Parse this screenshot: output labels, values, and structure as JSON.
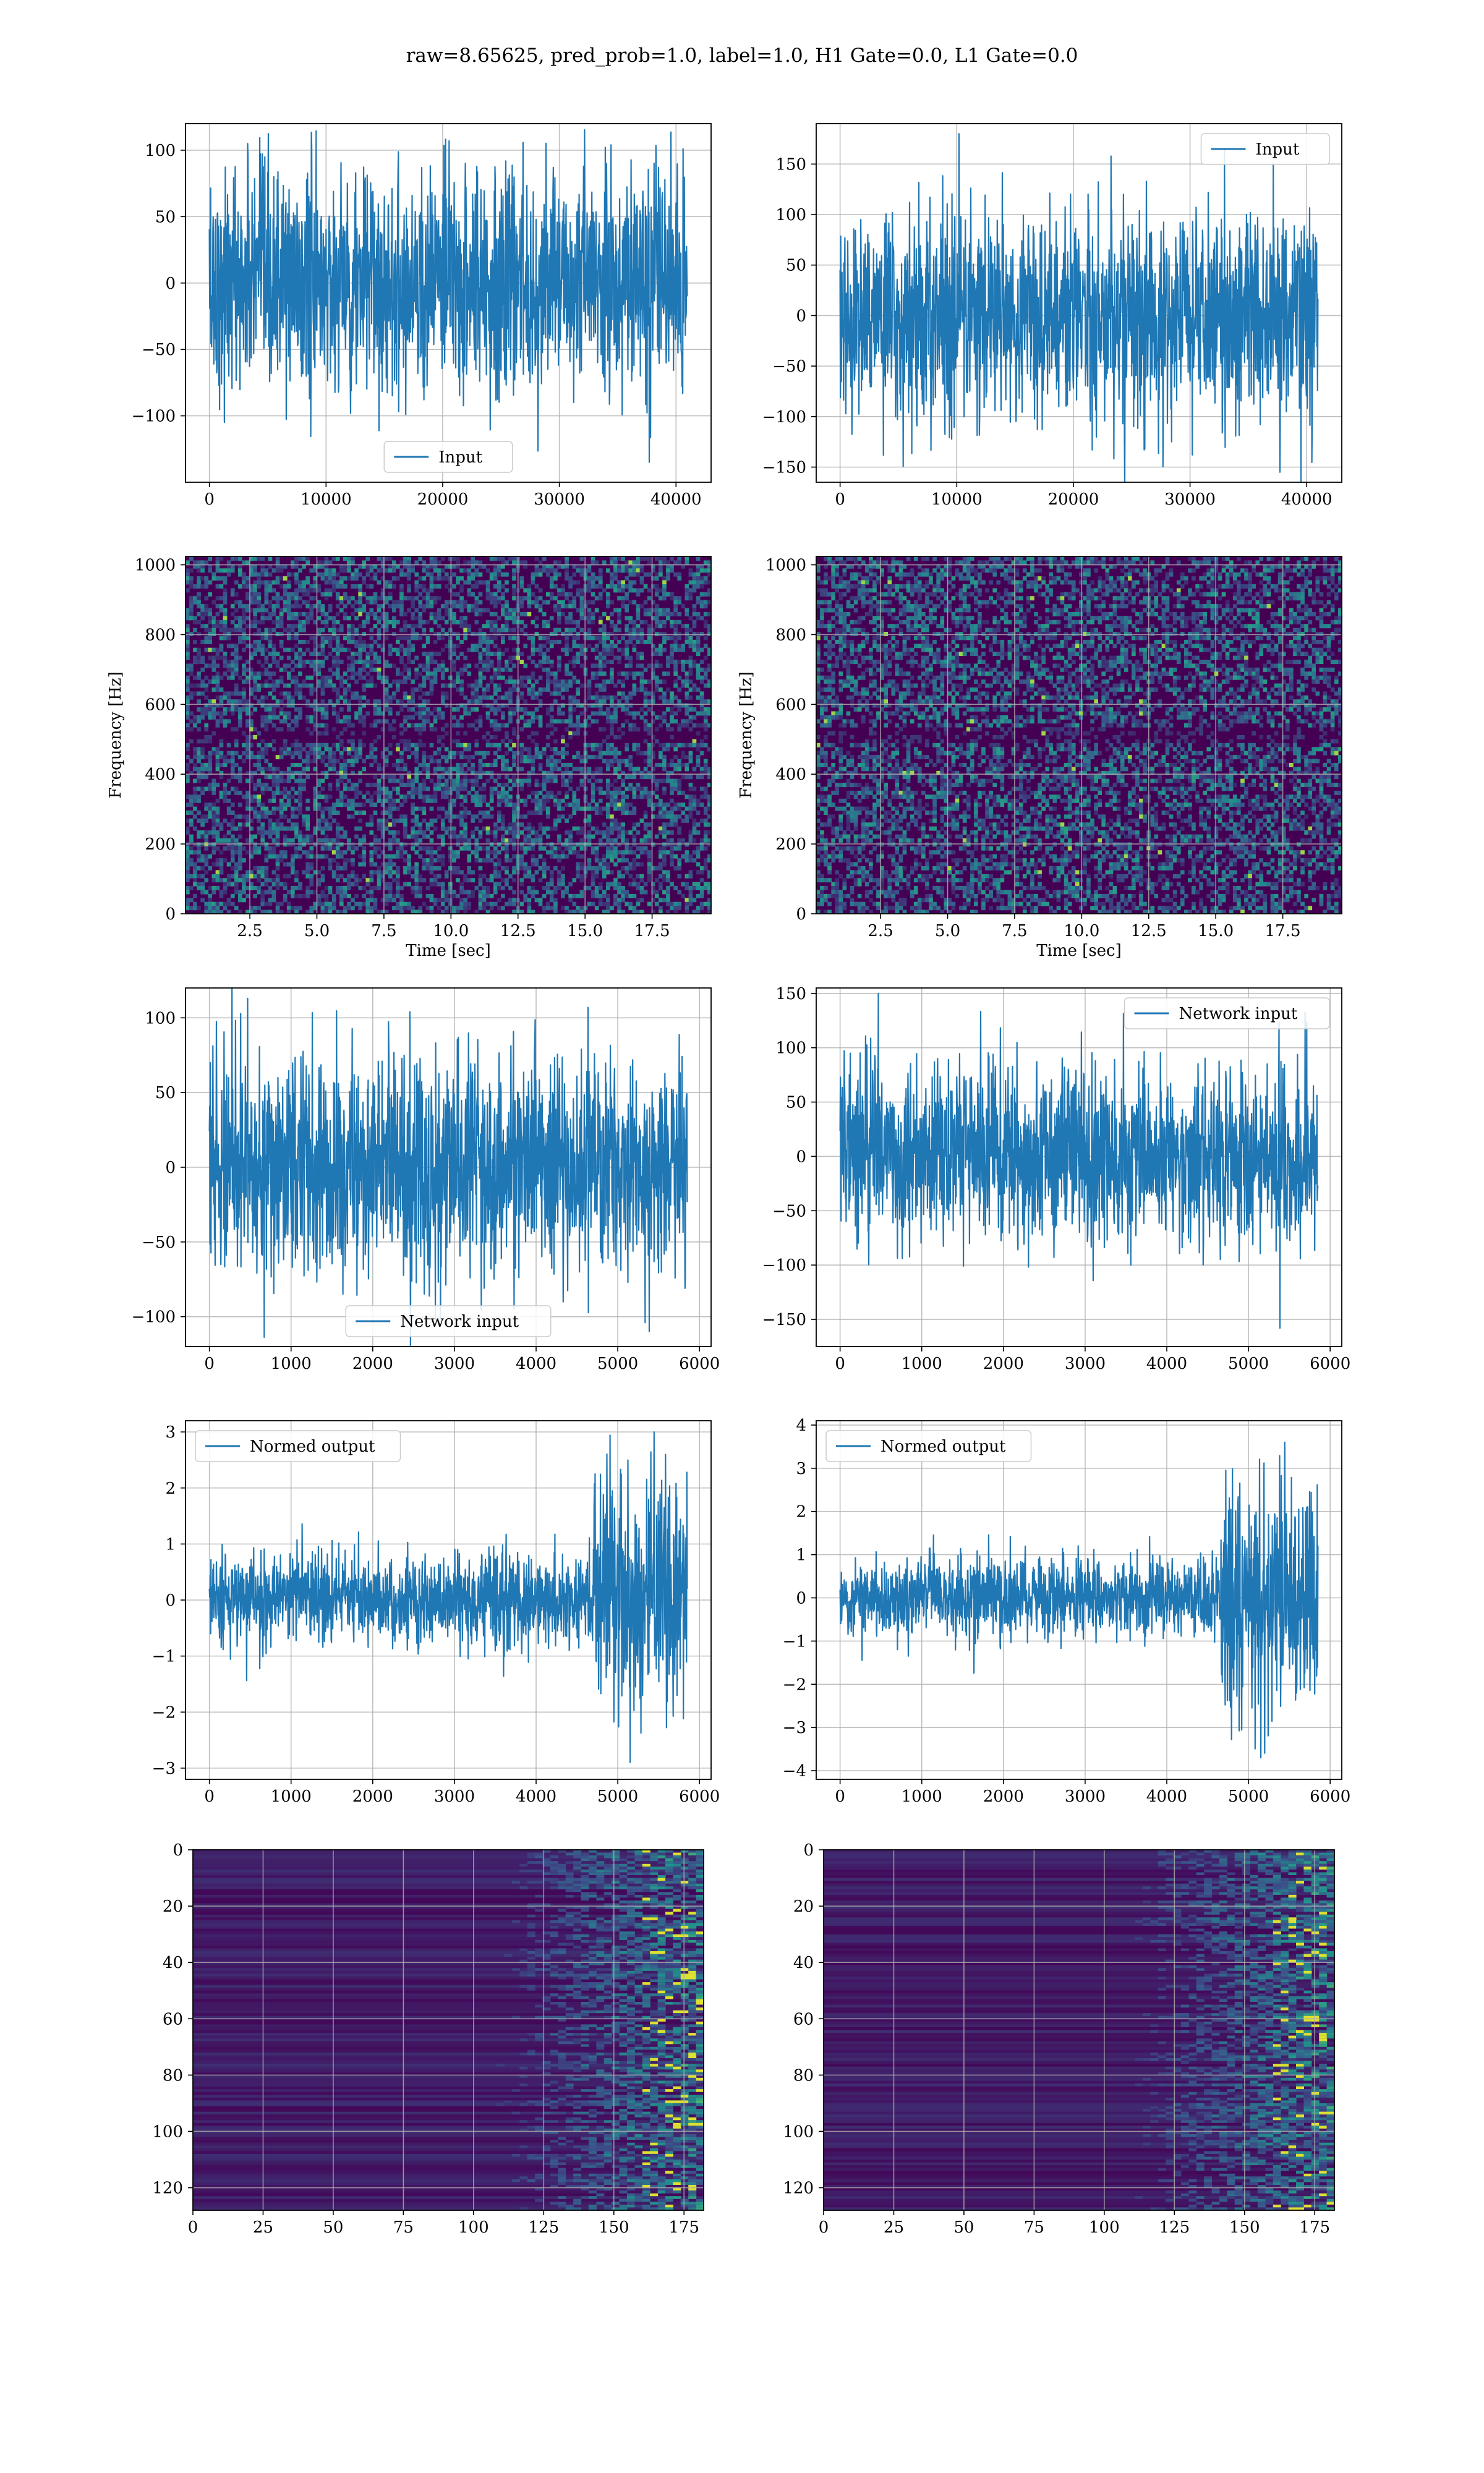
{
  "figure": {
    "suptitle": "raw=8.65625, pred_prob=1.0, label=1.0, H1 Gate=0.0, L1 Gate=0.0",
    "colors": {
      "line": "#1f77b4",
      "grid": "#b0b0b0",
      "spine": "#000000",
      "viridis_low": "#440154",
      "viridis_mid": "#21918c",
      "viridis_high": "#fde725"
    }
  },
  "chart_data": [
    {
      "id": "h1-input",
      "type": "line",
      "series": [
        {
          "name": "Input"
        }
      ],
      "legend": "lower center",
      "x_range": [
        0,
        40960
      ],
      "ylim": [
        -150,
        120
      ],
      "xticks": [
        0,
        10000,
        20000,
        30000,
        40000
      ],
      "yticks": [
        -100,
        -50,
        0,
        50,
        100
      ],
      "envelope": {
        "amp": 42,
        "peak": 105,
        "min": -135
      },
      "grid": true
    },
    {
      "id": "l1-input",
      "type": "line",
      "series": [
        {
          "name": "Input"
        }
      ],
      "legend": "upper right",
      "x_range": [
        0,
        40960
      ],
      "ylim": [
        -165,
        190
      ],
      "xticks": [
        0,
        10000,
        20000,
        30000,
        40000
      ],
      "yticks": [
        -150,
        -100,
        -50,
        0,
        50,
        100,
        150
      ],
      "envelope": {
        "amp": 50,
        "peak": 180,
        "peak_x": 10200,
        "min": -155
      },
      "grid": true
    },
    {
      "id": "h1-spectrogram",
      "type": "heatmap",
      "xlabel": "Time [sec]",
      "ylabel": "Frequency [Hz]",
      "x_range": [
        0.1,
        19.7
      ],
      "ylim": [
        0,
        1024
      ],
      "xticks": [
        "2.5",
        "5.0",
        "7.5",
        "10.0",
        "12.5",
        "15.0",
        "17.5"
      ],
      "xtick_values": [
        2.5,
        5.0,
        7.5,
        10.0,
        12.5,
        15.0,
        17.5
      ],
      "yticks": [
        0,
        200,
        400,
        600,
        800,
        1000
      ],
      "colormap": "viridis",
      "grid": true
    },
    {
      "id": "l1-spectrogram",
      "type": "heatmap",
      "xlabel": "Time [sec]",
      "ylabel": "Frequency [Hz]",
      "x_range": [
        0.1,
        19.7
      ],
      "ylim": [
        0,
        1024
      ],
      "xticks": [
        "2.5",
        "5.0",
        "7.5",
        "10.0",
        "12.5",
        "15.0",
        "17.5"
      ],
      "xtick_values": [
        2.5,
        5.0,
        7.5,
        10.0,
        12.5,
        15.0,
        17.5
      ],
      "yticks": [
        0,
        200,
        400,
        600,
        800,
        1000
      ],
      "colormap": "viridis",
      "grid": true
    },
    {
      "id": "h1-network-input",
      "type": "line",
      "series": [
        {
          "name": "Network input"
        }
      ],
      "legend": "lower center",
      "x_range": [
        0,
        5850
      ],
      "ylim": [
        -120,
        120
      ],
      "xticks": [
        0,
        1000,
        2000,
        3000,
        4000,
        5000,
        6000
      ],
      "yticks": [
        -100,
        -50,
        0,
        50,
        100
      ],
      "envelope": {
        "amp": 36,
        "peak": 113,
        "min": -110
      },
      "grid": true
    },
    {
      "id": "l1-network-input",
      "type": "line",
      "series": [
        {
          "name": "Network input"
        }
      ],
      "legend": "upper right",
      "x_range": [
        0,
        5850
      ],
      "ylim": [
        -175,
        155
      ],
      "xticks": [
        0,
        1000,
        2000,
        3000,
        4000,
        5000,
        6000
      ],
      "yticks": [
        -150,
        -100,
        -50,
        0,
        50,
        100,
        150
      ],
      "envelope": {
        "amp": 40,
        "peak": 150,
        "min": -158
      },
      "grid": true
    },
    {
      "id": "h1-normed-output",
      "type": "line",
      "series": [
        {
          "name": "Normed output"
        }
      ],
      "legend": "upper left",
      "x_range": [
        0,
        5850
      ],
      "ylim": [
        -3.2,
        3.2
      ],
      "xticks": [
        0,
        1000,
        2000,
        3000,
        4000,
        5000,
        6000
      ],
      "yticks": [
        -3,
        -2,
        -1,
        0,
        1,
        2,
        3
      ],
      "envelope": {
        "amp": 0.4,
        "burst_start": 4700,
        "burst_amp": 1.05,
        "peak": 3.0,
        "min": -2.9
      },
      "grid": true
    },
    {
      "id": "l1-normed-output",
      "type": "line",
      "series": [
        {
          "name": "Normed output"
        }
      ],
      "legend": "upper left",
      "x_range": [
        0,
        5850
      ],
      "ylim": [
        -4.2,
        4.1
      ],
      "xticks": [
        0,
        1000,
        2000,
        3000,
        4000,
        5000,
        6000
      ],
      "yticks": [
        -4,
        -3,
        -2,
        -1,
        0,
        1,
        2,
        3,
        4
      ],
      "envelope": {
        "amp": 0.45,
        "burst_start": 4650,
        "burst_amp": 1.3,
        "peak": 3.6,
        "min": -3.7
      },
      "grid": true
    },
    {
      "id": "h1-feature-map",
      "type": "heatmap",
      "x_range": [
        0,
        182
      ],
      "ylim": [
        128,
        0
      ],
      "xticks": [
        0,
        25,
        50,
        75,
        100,
        125,
        150,
        175
      ],
      "yticks": [
        0,
        20,
        40,
        60,
        80,
        100,
        120
      ],
      "colormap": "viridis",
      "grid": true
    },
    {
      "id": "l1-feature-map",
      "type": "heatmap",
      "x_range": [
        0,
        182
      ],
      "ylim": [
        128,
        0
      ],
      "xticks": [
        0,
        25,
        50,
        75,
        100,
        125,
        150,
        175
      ],
      "yticks": [
        0,
        20,
        40,
        60,
        80,
        100,
        120
      ],
      "colormap": "viridis",
      "grid": true
    }
  ]
}
